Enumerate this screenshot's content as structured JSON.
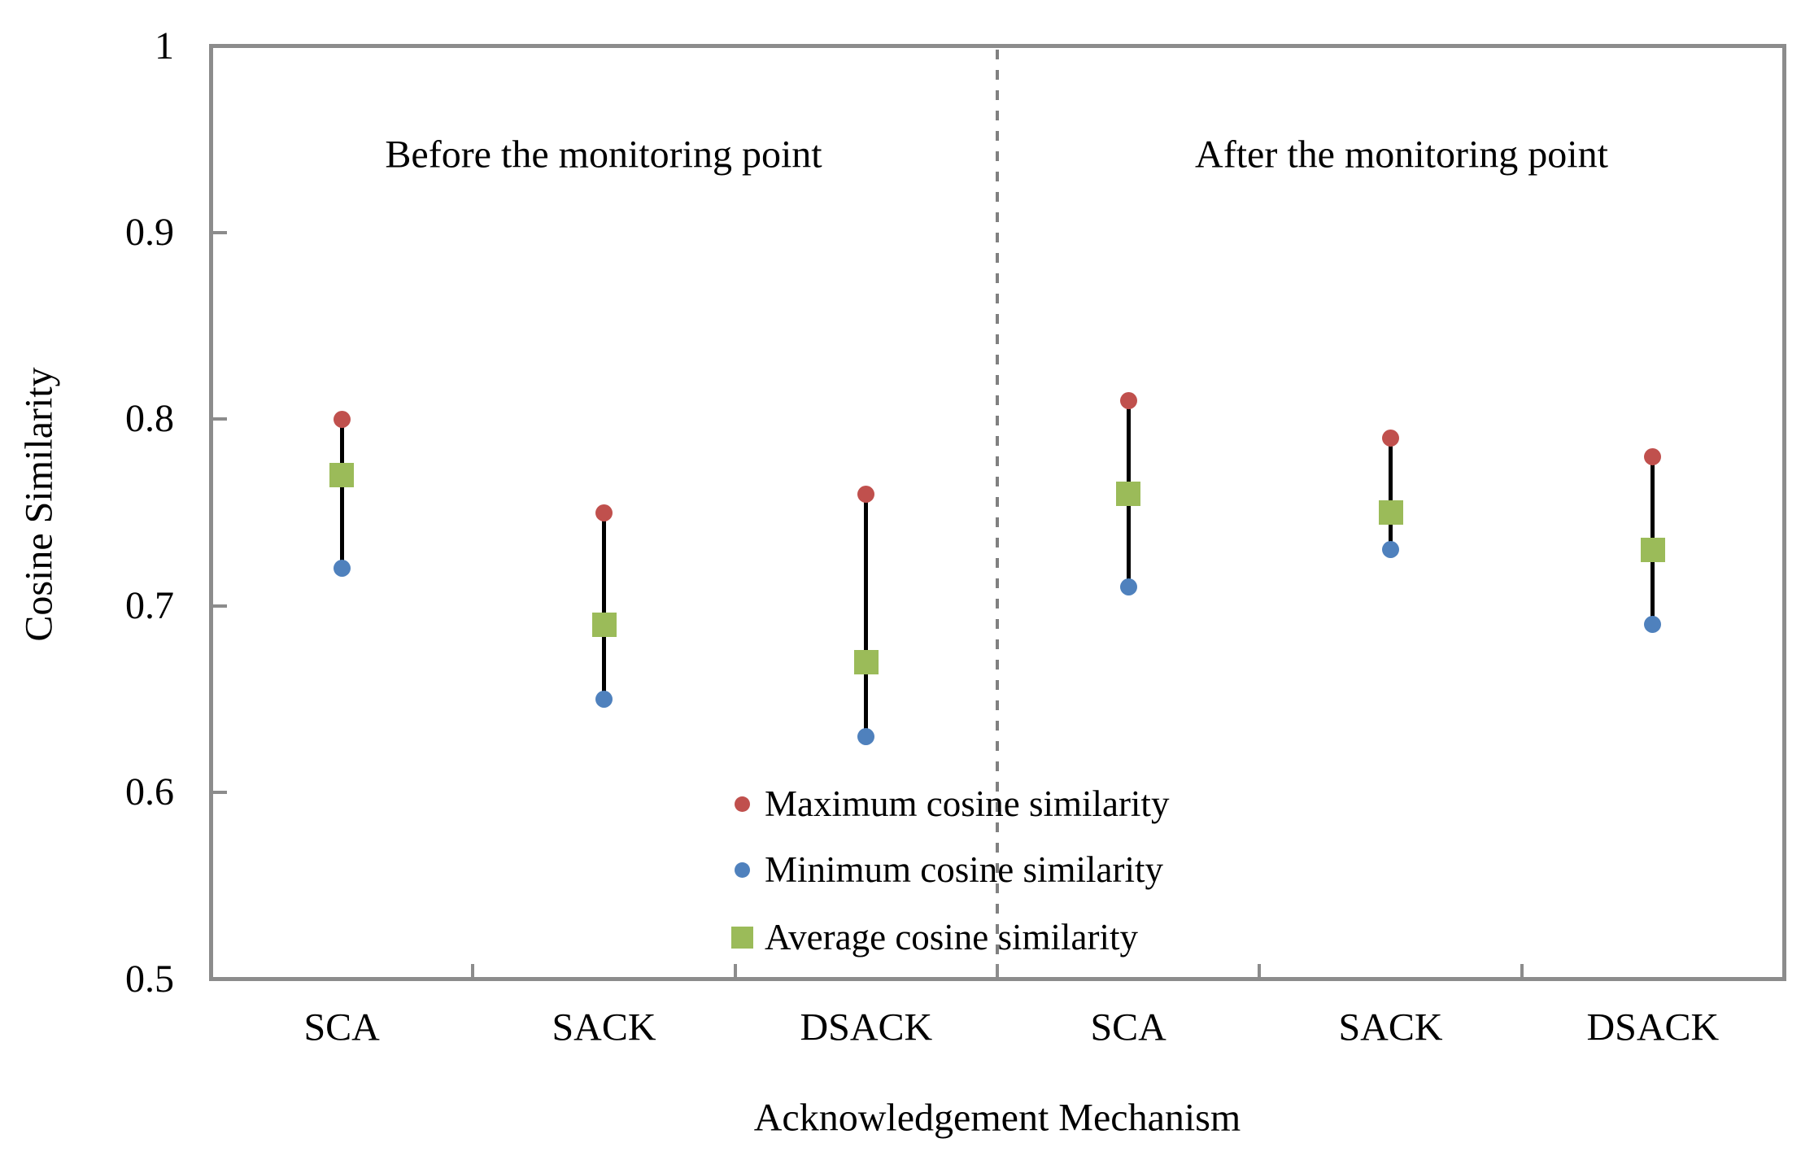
{
  "chart_data": {
    "type": "scatter",
    "variant": "min-max-average range plot",
    "title": "",
    "xlabel": "Acknowledgement Mechanism",
    "ylabel": "Cosine Similarity",
    "ylim": [
      0.5,
      1.0
    ],
    "yticks": [
      1,
      0.9,
      0.8,
      0.7,
      0.6,
      0.5
    ],
    "ytick_labels": [
      "1",
      "0.9",
      "0.8",
      "0.7",
      "0.6",
      "0.5"
    ],
    "inner_ytick_values": [
      0.9,
      0.8,
      0.7,
      0.6
    ],
    "grid": false,
    "legend_position": "inside-bottom-center",
    "sections": [
      {
        "label": "Before the monitoring point",
        "categories": [
          "SCA",
          "SACK",
          "DSACK"
        ]
      },
      {
        "label": "After the monitoring point",
        "categories": [
          "SCA",
          "SACK",
          "DSACK"
        ]
      }
    ],
    "categories": [
      "SCA",
      "SACK",
      "DSACK",
      "SCA",
      "SACK",
      "DSACK"
    ],
    "series": [
      {
        "name": "Maximum cosine similarity",
        "marker": "circle",
        "color": "#C0504D",
        "values": [
          0.8,
          0.75,
          0.76,
          0.81,
          0.79,
          0.78
        ]
      },
      {
        "name": "Minimum cosine similarity",
        "marker": "circle",
        "color": "#4F81BD",
        "values": [
          0.72,
          0.65,
          0.63,
          0.71,
          0.73,
          0.69
        ]
      },
      {
        "name": "Average cosine similarity",
        "marker": "square",
        "color": "#9BBB59",
        "values": [
          0.77,
          0.69,
          0.67,
          0.76,
          0.75,
          0.73
        ]
      }
    ],
    "divider": {
      "style": "dashed",
      "color": "#808080",
      "after_category_index": 2
    }
  },
  "legend": {
    "items": [
      {
        "label": "Maximum cosine similarity",
        "marker": "circle",
        "color": "#C0504D"
      },
      {
        "label": "Minimum cosine similarity",
        "marker": "circle",
        "color": "#4F81BD"
      },
      {
        "label": "Average cosine similarity",
        "marker": "square",
        "color": "#9BBB59"
      }
    ]
  },
  "colors": {
    "max_marker": "#C0504D",
    "min_marker": "#4F81BD",
    "avg_marker": "#9BBB59",
    "axis": "#8C8C8C",
    "divider": "#808080",
    "error_bar": "#000000",
    "text": "#000000",
    "background": "#FFFFFF"
  }
}
